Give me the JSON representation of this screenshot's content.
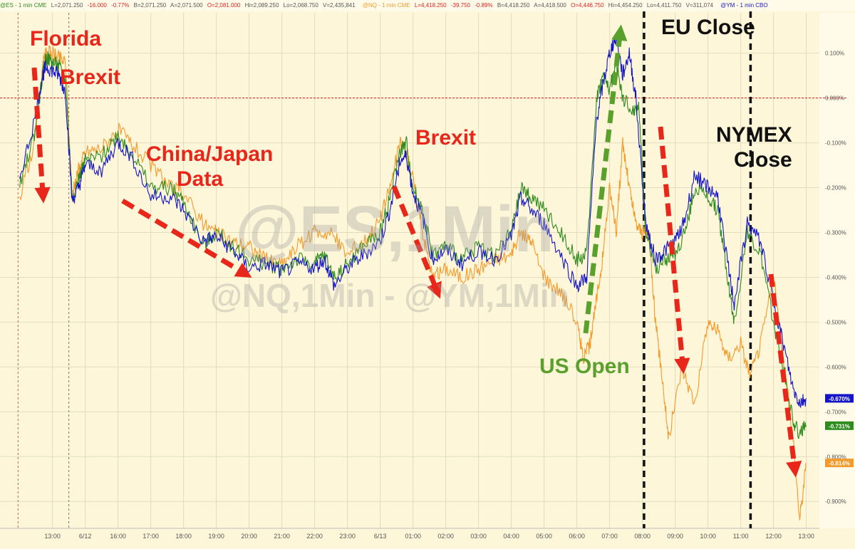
{
  "header": {
    "es": [
      "@ES - 1 min CME",
      "L=2,071.250",
      "-16.000",
      "-0.77%",
      "B=2,071.250",
      "A=2,071.500",
      "O=2,081.000",
      "Hi=2,089.250",
      "Lo=2,068.750",
      "V=2,435,841"
    ],
    "nq": [
      "@NQ - 1 min CME",
      "L=4,418.250",
      "-39.750",
      "-0.89%",
      "B=4,418.250",
      "A=4,418.500",
      "O=4,446.750",
      "Hi=4,454.250",
      "Lo=4,411.750",
      "V=311,074"
    ],
    "ym": [
      "@YM - 1 min CBO"
    ]
  },
  "watermark": {
    "line1": "@ES,1Min",
    "line2": "@NQ,1Min - @YM,1Min"
  },
  "annotations": {
    "florida": "Florida",
    "brexit1": "Brexit",
    "china": "China/Japan",
    "data": "Data",
    "brexit2": "Brexit",
    "us_open": "US Open",
    "eu_close": "EU Close",
    "nymex": "NYMEX",
    "close": "Close"
  },
  "colors": {
    "es": "#2e8b1e",
    "nq": "#f39a2c",
    "ym": "#1414c8",
    "arrow_red": "#e8261a",
    "arrow_green": "#5aa02c",
    "background": "#fdf6d8",
    "zero_line": "#cc2222"
  },
  "chart_data": {
    "type": "line",
    "title": "",
    "xlabel": "",
    "ylabel": "",
    "x_ticks": [
      "13:00",
      "6/12",
      "16:00",
      "17:00",
      "18:00",
      "19:00",
      "20:00",
      "21:00",
      "22:00",
      "23:00",
      "6/13",
      "01:00",
      "02:00",
      "03:00",
      "04:00",
      "05:00",
      "06:00",
      "07:00",
      "08:00",
      "09:00",
      "10:00",
      "11:00",
      "12:00",
      "13:00"
    ],
    "y_ticks": [
      "0.100%",
      "0.000%",
      "-0.100%",
      "-0.200%",
      "-0.300%",
      "-0.400%",
      "-0.500%",
      "-0.600%",
      "-0.700%",
      "-0.800%",
      "-0.900%"
    ],
    "ylim": [
      -0.96,
      0.19
    ],
    "series": [
      {
        "name": "@ES",
        "last_label": "-0.731%",
        "points": [
          [
            -1,
            -0.2
          ],
          [
            -0.55,
            -0.08
          ],
          [
            -0.3,
            0.05
          ],
          [
            -0.2,
            0.09
          ],
          [
            0,
            0.08
          ],
          [
            0.2,
            0.07
          ],
          [
            0.4,
            0.04
          ],
          [
            0.6,
            -0.22
          ],
          [
            0.8,
            -0.18
          ],
          [
            1,
            -0.14
          ],
          [
            1.5,
            -0.13
          ],
          [
            2,
            -0.08
          ],
          [
            2.4,
            -0.12
          ],
          [
            3,
            -0.2
          ],
          [
            3.6,
            -0.2
          ],
          [
            4,
            -0.23
          ],
          [
            4.6,
            -0.33
          ],
          [
            5,
            -0.3
          ],
          [
            5.5,
            -0.33
          ],
          [
            6,
            -0.36
          ],
          [
            6.5,
            -0.37
          ],
          [
            7,
            -0.38
          ],
          [
            7.5,
            -0.36
          ],
          [
            8,
            -0.37
          ],
          [
            8.3,
            -0.35
          ],
          [
            8.6,
            -0.4
          ],
          [
            9,
            -0.37
          ],
          [
            9.5,
            -0.33
          ],
          [
            10,
            -0.3
          ],
          [
            10.3,
            -0.22
          ],
          [
            10.6,
            -0.12
          ],
          [
            10.8,
            -0.1
          ],
          [
            11,
            -0.2
          ],
          [
            11.3,
            -0.25
          ],
          [
            11.6,
            -0.35
          ],
          [
            12,
            -0.33
          ],
          [
            12.5,
            -0.36
          ],
          [
            13,
            -0.33
          ],
          [
            13.5,
            -0.35
          ],
          [
            14,
            -0.3
          ],
          [
            14.3,
            -0.2
          ],
          [
            14.6,
            -0.22
          ],
          [
            15,
            -0.25
          ],
          [
            15.5,
            -0.3
          ],
          [
            16,
            -0.36
          ],
          [
            16.3,
            -0.35
          ],
          [
            16.6,
            0.0
          ],
          [
            16.8,
            0.05
          ],
          [
            17,
            0.02
          ],
          [
            17.2,
            0.08
          ],
          [
            17.4,
            0.0
          ],
          [
            17.7,
            -0.03
          ],
          [
            17.9,
            -0.02
          ],
          [
            18.1,
            -0.3
          ],
          [
            18.4,
            -0.38
          ],
          [
            18.7,
            -0.36
          ],
          [
            19,
            -0.35
          ],
          [
            19.3,
            -0.3
          ],
          [
            19.6,
            -0.2
          ],
          [
            20,
            -0.22
          ],
          [
            20.3,
            -0.25
          ],
          [
            20.6,
            -0.4
          ],
          [
            20.8,
            -0.5
          ],
          [
            21.2,
            -0.3
          ],
          [
            21.6,
            -0.35
          ],
          [
            22,
            -0.5
          ],
          [
            22.3,
            -0.6
          ],
          [
            22.6,
            -0.72
          ],
          [
            22.8,
            -0.75
          ],
          [
            23,
            -0.731
          ]
        ]
      },
      {
        "name": "@NQ",
        "last_label": "-0.814%",
        "points": [
          [
            -1,
            -0.22
          ],
          [
            -0.55,
            -0.1
          ],
          [
            -0.3,
            0.07
          ],
          [
            -0.2,
            0.1
          ],
          [
            0,
            0.1
          ],
          [
            0.2,
            0.09
          ],
          [
            0.4,
            0.08
          ],
          [
            0.6,
            -0.22
          ],
          [
            0.8,
            -0.16
          ],
          [
            1,
            -0.12
          ],
          [
            1.5,
            -0.11
          ],
          [
            2,
            -0.07
          ],
          [
            2.4,
            -0.1
          ],
          [
            3,
            -0.15
          ],
          [
            3.6,
            -0.2
          ],
          [
            4,
            -0.21
          ],
          [
            4.6,
            -0.28
          ],
          [
            5,
            -0.3
          ],
          [
            5.5,
            -0.32
          ],
          [
            6,
            -0.33
          ],
          [
            6.5,
            -0.36
          ],
          [
            7,
            -0.37
          ],
          [
            7.5,
            -0.33
          ],
          [
            8,
            -0.3
          ],
          [
            8.5,
            -0.3
          ],
          [
            9,
            -0.35
          ],
          [
            9.5,
            -0.32
          ],
          [
            10,
            -0.27
          ],
          [
            10.3,
            -0.2
          ],
          [
            10.6,
            -0.1
          ],
          [
            10.8,
            -0.12
          ],
          [
            11,
            -0.18
          ],
          [
            11.3,
            -0.3
          ],
          [
            11.6,
            -0.4
          ],
          [
            12,
            -0.38
          ],
          [
            12.5,
            -0.4
          ],
          [
            13,
            -0.38
          ],
          [
            13.5,
            -0.36
          ],
          [
            14,
            -0.35
          ],
          [
            14.3,
            -0.3
          ],
          [
            14.6,
            -0.32
          ],
          [
            15,
            -0.4
          ],
          [
            15.5,
            -0.43
          ],
          [
            16,
            -0.5
          ],
          [
            16.2,
            -0.58
          ],
          [
            16.4,
            -0.55
          ],
          [
            16.6,
            -0.45
          ],
          [
            16.8,
            -0.35
          ],
          [
            17,
            -0.2
          ],
          [
            17.2,
            -0.3
          ],
          [
            17.4,
            -0.1
          ],
          [
            17.6,
            -0.2
          ],
          [
            17.8,
            -0.28
          ],
          [
            18,
            -0.3
          ],
          [
            18.2,
            -0.3
          ],
          [
            18.4,
            -0.5
          ],
          [
            18.6,
            -0.62
          ],
          [
            18.8,
            -0.76
          ],
          [
            19.2,
            -0.6
          ],
          [
            19.6,
            -0.68
          ],
          [
            20,
            -0.5
          ],
          [
            20.3,
            -0.52
          ],
          [
            20.6,
            -0.58
          ],
          [
            21,
            -0.55
          ],
          [
            21.3,
            -0.62
          ],
          [
            21.6,
            -0.55
          ],
          [
            22,
            -0.4
          ],
          [
            22.3,
            -0.58
          ],
          [
            22.6,
            -0.76
          ],
          [
            22.8,
            -0.94
          ],
          [
            23,
            -0.814
          ]
        ]
      },
      {
        "name": "@YM",
        "last_label": "-0.670%",
        "points": [
          [
            -1,
            -0.18
          ],
          [
            -0.55,
            -0.05
          ],
          [
            -0.3,
            0.05
          ],
          [
            -0.2,
            0.07
          ],
          [
            0,
            0.06
          ],
          [
            0.2,
            0.05
          ],
          [
            0.4,
            0.01
          ],
          [
            0.6,
            -0.23
          ],
          [
            0.8,
            -0.2
          ],
          [
            1,
            -0.15
          ],
          [
            1.5,
            -0.16
          ],
          [
            2,
            -0.1
          ],
          [
            2.4,
            -0.13
          ],
          [
            3,
            -0.22
          ],
          [
            3.6,
            -0.22
          ],
          [
            4,
            -0.25
          ],
          [
            4.6,
            -0.32
          ],
          [
            5,
            -0.31
          ],
          [
            5.5,
            -0.34
          ],
          [
            6,
            -0.38
          ],
          [
            6.5,
            -0.37
          ],
          [
            7,
            -0.39
          ],
          [
            7.5,
            -0.37
          ],
          [
            8,
            -0.38
          ],
          [
            8.3,
            -0.36
          ],
          [
            8.6,
            -0.42
          ],
          [
            9,
            -0.38
          ],
          [
            9.5,
            -0.35
          ],
          [
            10,
            -0.32
          ],
          [
            10.3,
            -0.25
          ],
          [
            10.6,
            -0.14
          ],
          [
            10.8,
            -0.13
          ],
          [
            11,
            -0.21
          ],
          [
            11.3,
            -0.27
          ],
          [
            11.6,
            -0.36
          ],
          [
            12,
            -0.34
          ],
          [
            12.5,
            -0.37
          ],
          [
            13,
            -0.34
          ],
          [
            13.5,
            -0.36
          ],
          [
            14,
            -0.31
          ],
          [
            14.3,
            -0.22
          ],
          [
            14.6,
            -0.25
          ],
          [
            15,
            -0.28
          ],
          [
            15.5,
            -0.35
          ],
          [
            16,
            -0.42
          ],
          [
            16.3,
            -0.4
          ],
          [
            16.6,
            -0.05
          ],
          [
            16.8,
            0.03
          ],
          [
            17,
            0.1
          ],
          [
            17.2,
            0.14
          ],
          [
            17.4,
            0.05
          ],
          [
            17.6,
            0.1
          ],
          [
            17.8,
            0.0
          ],
          [
            18.1,
            -0.28
          ],
          [
            18.4,
            -0.36
          ],
          [
            18.7,
            -0.34
          ],
          [
            19,
            -0.32
          ],
          [
            19.3,
            -0.27
          ],
          [
            19.6,
            -0.17
          ],
          [
            20,
            -0.2
          ],
          [
            20.3,
            -0.22
          ],
          [
            20.6,
            -0.37
          ],
          [
            20.8,
            -0.46
          ],
          [
            21.2,
            -0.28
          ],
          [
            21.6,
            -0.32
          ],
          [
            22,
            -0.45
          ],
          [
            22.3,
            -0.55
          ],
          [
            22.6,
            -0.65
          ],
          [
            22.8,
            -0.68
          ],
          [
            23,
            -0.67
          ]
        ]
      }
    ],
    "vlines": [
      {
        "x": 0.5,
        "style": "dashed-gray"
      },
      {
        "x": 18.05,
        "style": "dashed-black"
      },
      {
        "x": 21.3,
        "style": "dashed-black"
      }
    ],
    "x_domain": [
      -1.6,
      23.4
    ],
    "legend": "none",
    "grid": true
  }
}
